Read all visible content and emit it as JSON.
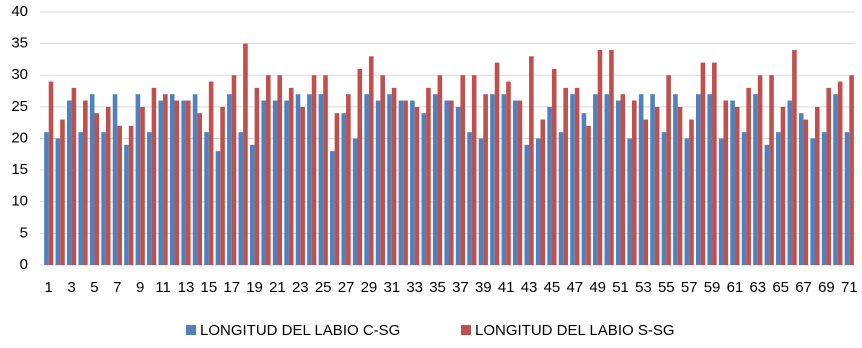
{
  "chart_data": {
    "type": "bar",
    "categories": [
      "1",
      null,
      "3",
      null,
      "5",
      null,
      "7",
      null,
      "9",
      null,
      "11",
      null,
      "13",
      null,
      "15",
      null,
      "17",
      null,
      "19",
      null,
      "21",
      null,
      "23",
      null,
      "25",
      null,
      "27",
      null,
      "29",
      null,
      "31",
      null,
      "33",
      null,
      "35",
      null,
      "37",
      null,
      "39",
      null,
      "41",
      null,
      "43",
      null,
      "45",
      null,
      "47",
      null,
      "49",
      null,
      "51",
      null,
      "53",
      null,
      "55",
      null,
      "57",
      null,
      "59",
      null,
      "61",
      null,
      "63",
      null,
      "65",
      null,
      "67",
      null,
      "69",
      null,
      "71"
    ],
    "series": [
      {
        "name": "LONGITUD DEL LABIO C-SG",
        "color": "#4f81bd",
        "values": [
          21,
          20,
          26,
          21,
          27,
          21,
          27,
          19,
          27,
          21,
          26,
          27,
          26,
          27,
          21,
          18,
          27,
          21,
          19,
          26,
          26,
          26,
          27,
          27,
          27,
          18,
          24,
          20,
          27,
          26,
          27,
          26,
          26,
          24,
          27,
          26,
          25,
          21,
          20,
          27,
          27,
          26,
          19,
          20,
          25,
          21,
          27,
          24,
          27,
          27,
          26,
          20,
          27,
          27,
          21,
          27,
          20,
          27,
          27,
          20,
          26,
          21,
          27,
          19,
          21,
          26,
          24,
          20,
          21,
          27,
          21
        ]
      },
      {
        "name": "LONGITUD DEL LABIO S-SG",
        "color": "#c0504d",
        "values": [
          29,
          23,
          28,
          26,
          24,
          25,
          22,
          22,
          25,
          28,
          27,
          26,
          26,
          24,
          29,
          25,
          30,
          35,
          28,
          30,
          30,
          28,
          25,
          30,
          30,
          24,
          27,
          31,
          33,
          30,
          28,
          26,
          25,
          28,
          30,
          26,
          30,
          30,
          27,
          32,
          29,
          26,
          33,
          23,
          31,
          28,
          28,
          22,
          34,
          34,
          27,
          26,
          23,
          25,
          30,
          25,
          23,
          32,
          32,
          26,
          25,
          28,
          30,
          30,
          25,
          34,
          23,
          25,
          28,
          29,
          30
        ]
      }
    ],
    "ylim": [
      0,
      40
    ],
    "yticks": [
      0,
      5,
      10,
      15,
      20,
      25,
      30,
      35,
      40
    ],
    "grid": true,
    "legend": "bottom"
  }
}
